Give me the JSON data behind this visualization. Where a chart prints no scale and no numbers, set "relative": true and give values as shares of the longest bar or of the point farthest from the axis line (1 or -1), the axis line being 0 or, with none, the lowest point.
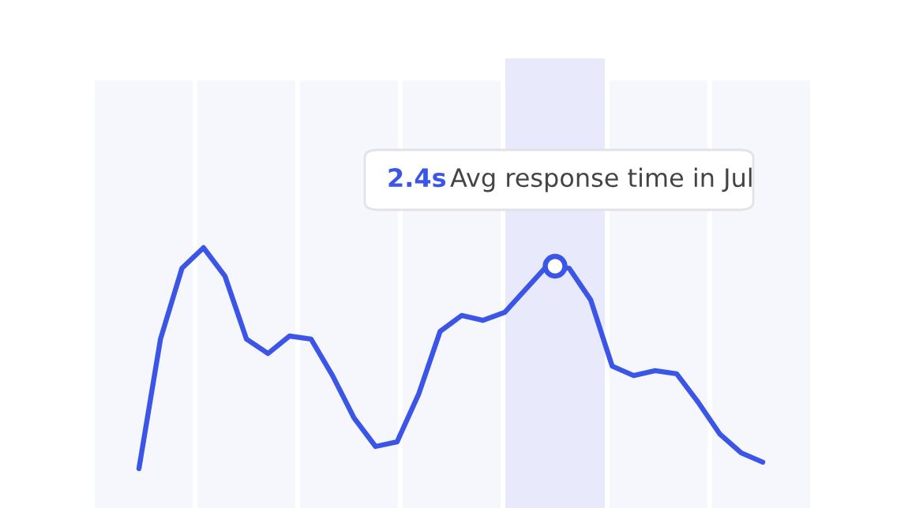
{
  "chart_data": {
    "type": "line",
    "relative": true,
    "categories": [
      null,
      null,
      null,
      null,
      null,
      null,
      null,
      null,
      null,
      null,
      null,
      null,
      null,
      null,
      null,
      null,
      null,
      null,
      null,
      null,
      null,
      null,
      null,
      null,
      null,
      null,
      null,
      null,
      null,
      null
    ],
    "series": [
      {
        "color": "#3b55e6",
        "values": [
          0,
          0.586,
          0.907,
          1.0,
          0.871,
          0.586,
          0.521,
          0.6,
          0.586,
          0.421,
          0.229,
          0.1,
          0.121,
          0.336,
          0.621,
          0.693,
          0.671,
          0.707,
          0.814,
          0.921,
          0.907,
          0.764,
          0.464,
          0.421,
          0.443,
          0.429,
          0.3,
          0.157,
          0.071,
          0.029
        ]
      }
    ],
    "annotations": [
      "2.4s",
      "Avg response time in Jul"
    ]
  }
}
